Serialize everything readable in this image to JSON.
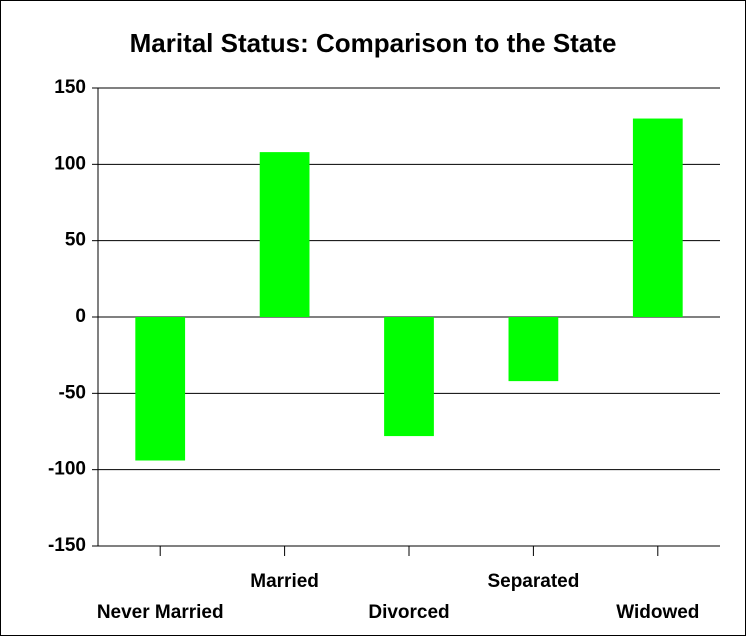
{
  "chart_data": {
    "type": "bar",
    "title": "Marital Status: Comparison to the State",
    "categories": [
      "Never Married",
      "Married",
      "Divorced",
      "Separated",
      "Widowed"
    ],
    "values": [
      -94,
      108,
      -78,
      -42,
      130
    ],
    "color": "#00ff00",
    "ylim": [
      -150,
      150
    ],
    "yticks": [
      -150,
      -100,
      -50,
      0,
      50,
      100,
      150
    ],
    "grid": true
  }
}
